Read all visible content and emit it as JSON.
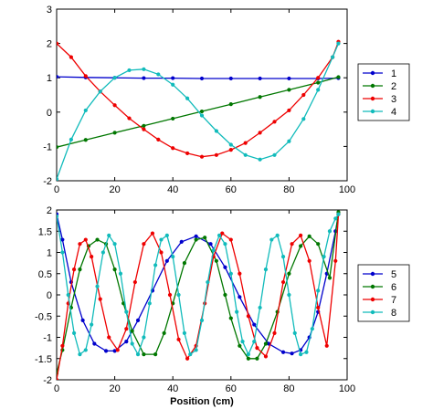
{
  "chart_data": [
    {
      "type": "scatter",
      "panel": "top",
      "title": "",
      "xlabel": "",
      "ylabel": "",
      "xlim": [
        0,
        100
      ],
      "ylim": [
        -2,
        3
      ],
      "xticks": [
        0,
        20,
        40,
        60,
        80,
        100
      ],
      "yticks": [
        -2,
        -1,
        0,
        1,
        2,
        3
      ],
      "xtick_labels": [
        "0",
        "20",
        "40",
        "60",
        "80",
        "100"
      ],
      "ytick_labels": [
        "-2",
        "-1",
        "0",
        "1",
        "2",
        "3"
      ],
      "grid": false,
      "legend_position": "right",
      "marker": "filled circle, connected by line",
      "series": [
        {
          "name": "1",
          "color": "#0000cc",
          "x": [
            0,
            10,
            20,
            30,
            40,
            50,
            60,
            70,
            80,
            90,
            97
          ],
          "y": [
            1.03,
            1.01,
            1.0,
            0.99,
            0.99,
            0.98,
            0.98,
            0.98,
            0.98,
            0.98,
            0.99
          ]
        },
        {
          "name": "2",
          "color": "#007700",
          "x": [
            0,
            10,
            20,
            30,
            40,
            50,
            60,
            70,
            80,
            90,
            97
          ],
          "y": [
            -1.02,
            -0.81,
            -0.6,
            -0.4,
            -0.19,
            0.02,
            0.23,
            0.44,
            0.65,
            0.86,
            1.02
          ]
        },
        {
          "name": "3",
          "color": "#ee0000",
          "x": [
            0,
            5,
            10,
            15,
            20,
            25,
            30,
            35,
            40,
            45,
            50,
            55,
            60,
            65,
            70,
            75,
            80,
            85,
            90,
            95,
            97
          ],
          "y": [
            2.0,
            1.6,
            1.05,
            0.6,
            0.2,
            -0.18,
            -0.5,
            -0.8,
            -1.05,
            -1.2,
            -1.3,
            -1.25,
            -1.1,
            -0.9,
            -0.6,
            -0.28,
            0.05,
            0.5,
            1.0,
            1.6,
            2.05
          ]
        },
        {
          "name": "4",
          "color": "#11bbbb",
          "x": [
            0,
            5,
            10,
            15,
            20,
            25,
            30,
            35,
            40,
            45,
            50,
            55,
            60,
            65,
            70,
            75,
            80,
            85,
            90,
            95,
            97
          ],
          "y": [
            -1.95,
            -0.8,
            0.05,
            0.6,
            1.0,
            1.22,
            1.25,
            1.1,
            0.8,
            0.4,
            -0.1,
            -0.55,
            -0.95,
            -1.25,
            -1.38,
            -1.25,
            -0.85,
            -0.2,
            0.65,
            1.6,
            2.0
          ]
        }
      ]
    },
    {
      "type": "scatter",
      "panel": "bottom",
      "title": "",
      "xlabel": "Position (cm)",
      "ylabel": "",
      "xlim": [
        0,
        100
      ],
      "ylim": [
        -2,
        2
      ],
      "xticks": [
        0,
        20,
        40,
        60,
        80,
        100
      ],
      "yticks": [
        -2,
        -1.5,
        -1,
        -0.5,
        0,
        0.5,
        1,
        1.5,
        2
      ],
      "xtick_labels": [
        "0",
        "20",
        "40",
        "60",
        "80",
        "100"
      ],
      "ytick_labels": [
        "-2",
        "-1.5",
        "-1",
        "-0.5",
        "0",
        "0.5",
        "1",
        "1.5",
        "2"
      ],
      "grid": false,
      "legend_position": "right",
      "marker": "filled circle, connected by line",
      "series": [
        {
          "name": "5",
          "color": "#0000cc",
          "x": [
            0,
            2,
            5,
            9,
            13,
            17,
            20,
            24,
            28,
            33,
            38,
            43,
            48,
            53,
            58,
            63,
            68,
            73,
            78,
            81,
            84,
            87,
            90,
            93,
            96,
            97
          ],
          "y": [
            1.9,
            1.3,
            0.3,
            -0.6,
            -1.15,
            -1.32,
            -1.32,
            -1.1,
            -0.6,
            0.1,
            0.8,
            1.25,
            1.38,
            1.2,
            0.65,
            -0.05,
            -0.7,
            -1.15,
            -1.35,
            -1.38,
            -1.3,
            -1.0,
            -0.4,
            0.5,
            1.5,
            1.9
          ]
        },
        {
          "name": "6",
          "color": "#007700",
          "x": [
            0,
            2,
            5,
            8,
            11,
            14,
            17,
            20,
            23,
            26,
            30,
            34,
            37,
            40,
            44,
            48,
            51,
            55,
            58,
            60,
            63,
            66,
            69,
            72,
            76,
            80,
            84,
            87,
            90,
            94,
            97
          ],
          "y": [
            -1.85,
            -1.3,
            -0.3,
            0.6,
            1.15,
            1.3,
            1.2,
            0.6,
            -0.2,
            -0.85,
            -1.4,
            -1.4,
            -0.9,
            -0.2,
            0.75,
            1.3,
            1.35,
            0.8,
            0.0,
            -0.55,
            -1.2,
            -1.5,
            -1.5,
            -1.15,
            -0.4,
            0.5,
            1.15,
            1.38,
            1.2,
            0.4,
            1.95
          ]
        },
        {
          "name": "7",
          "color": "#ee0000",
          "x": [
            0,
            2,
            4,
            6,
            8,
            10,
            12,
            15,
            18,
            21,
            24,
            27,
            30,
            33,
            36,
            39,
            42,
            45,
            48,
            51,
            54,
            57,
            60,
            63,
            66,
            69,
            72,
            75,
            78,
            81,
            84,
            87,
            90,
            93,
            96,
            97
          ],
          "y": [
            -2.0,
            -1.2,
            -0.2,
            0.6,
            1.2,
            1.3,
            0.9,
            -0.1,
            -1.0,
            -1.3,
            -0.8,
            0.3,
            1.2,
            1.45,
            1.0,
            0.0,
            -1.05,
            -1.5,
            -1.2,
            -0.2,
            0.9,
            1.45,
            1.3,
            0.5,
            -0.5,
            -1.25,
            -1.45,
            -0.9,
            0.3,
            1.2,
            1.4,
            0.8,
            -0.3,
            -1.2,
            0.8,
            1.9
          ]
        },
        {
          "name": "8",
          "color": "#11bbbb",
          "x": [
            0,
            2,
            4,
            6,
            8,
            10,
            12,
            14,
            16,
            18,
            20,
            22,
            24,
            26,
            28,
            30,
            32,
            34,
            36,
            38,
            40,
            42,
            44,
            46,
            48,
            50,
            52,
            54,
            56,
            58,
            60,
            62,
            64,
            66,
            68,
            70,
            72,
            74,
            76,
            78,
            80,
            82,
            84,
            86,
            88,
            90,
            92,
            94,
            96,
            97
          ],
          "y": [
            1.85,
            1.0,
            0.0,
            -0.9,
            -1.4,
            -1.3,
            -0.7,
            0.2,
            1.0,
            1.4,
            1.2,
            0.5,
            -0.4,
            -1.15,
            -1.4,
            -1.0,
            -0.2,
            0.7,
            1.3,
            1.4,
            0.9,
            0.0,
            -0.9,
            -1.4,
            -1.3,
            -0.6,
            0.3,
            1.05,
            1.4,
            1.2,
            0.5,
            -0.4,
            -1.1,
            -1.4,
            -1.1,
            -0.3,
            0.6,
            1.3,
            1.4,
            0.9,
            0.0,
            -0.9,
            -1.4,
            -1.35,
            -0.8,
            0.1,
            0.9,
            1.5,
            1.8,
            1.9
          ]
        }
      ]
    }
  ]
}
